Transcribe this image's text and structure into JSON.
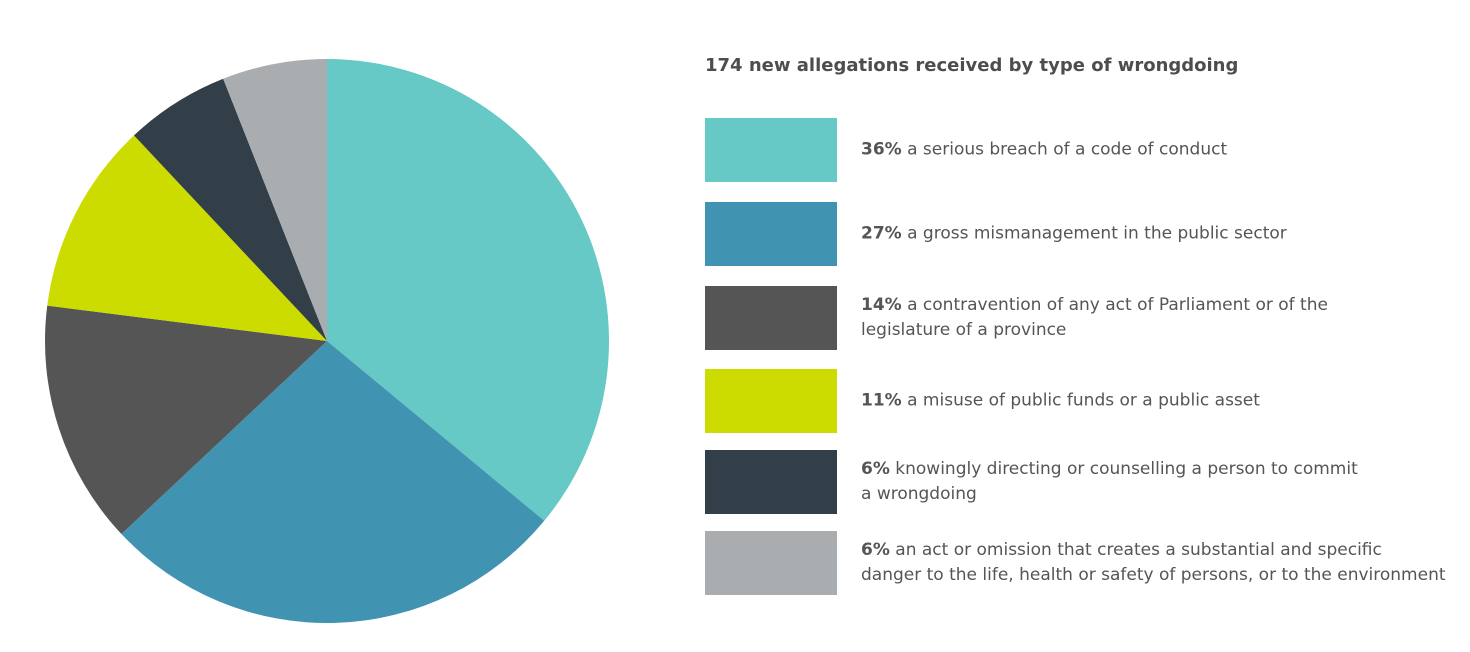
{
  "chart_data": {
    "type": "pie",
    "title": "174 new allegations received by type of wrongdoing",
    "categories": [
      "a serious breach of a code of conduct",
      "a gross mismanagement in the public sector",
      "a contravention of any act of Parliament or of the\nlegislature of a province",
      "a misuse of public funds or a public asset",
      "knowingly directing or counselling a person to commit\na wrongdoing",
      "an act or omission that creates a substantial and specific\ndanger to the life, health or safety of persons, or to the environment"
    ],
    "values": [
      36,
      27,
      14,
      11,
      6,
      6
    ],
    "value_labels": [
      "36%",
      "27%",
      "14%",
      "11%",
      "6%",
      "6%"
    ],
    "colors": [
      "#66c9c6",
      "#4193b2",
      "#555555",
      "#cddc00",
      "#333f48",
      "#a9adb0"
    ]
  }
}
